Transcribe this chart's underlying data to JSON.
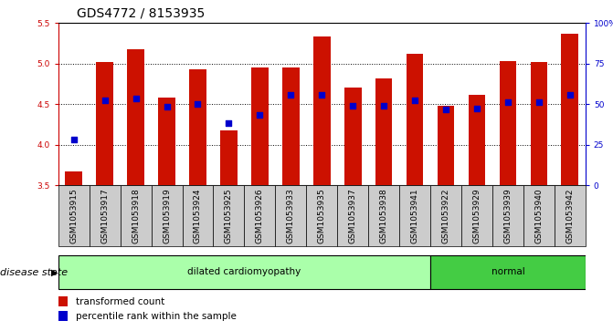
{
  "title": "GDS4772 / 8153935",
  "samples": [
    "GSM1053915",
    "GSM1053917",
    "GSM1053918",
    "GSM1053919",
    "GSM1053924",
    "GSM1053925",
    "GSM1053926",
    "GSM1053933",
    "GSM1053935",
    "GSM1053937",
    "GSM1053938",
    "GSM1053941",
    "GSM1053922",
    "GSM1053929",
    "GSM1053939",
    "GSM1053940",
    "GSM1053942"
  ],
  "bar_values": [
    3.67,
    5.02,
    5.18,
    4.58,
    4.93,
    4.18,
    4.95,
    4.95,
    5.34,
    4.71,
    4.82,
    5.12,
    4.48,
    4.62,
    5.03,
    5.02,
    5.37
  ],
  "blue_dot_values": [
    4.07,
    4.55,
    4.57,
    4.47,
    4.5,
    4.27,
    4.37,
    4.62,
    4.62,
    4.48,
    4.48,
    4.55,
    4.44,
    4.45,
    4.53,
    4.53,
    4.62
  ],
  "bar_color": "#cc1100",
  "dot_color": "#0000cc",
  "ylim_left": [
    3.5,
    5.5
  ],
  "ylim_right": [
    0,
    100
  ],
  "yticks_left": [
    3.5,
    4.0,
    4.5,
    5.0,
    5.5
  ],
  "yticks_right": [
    0,
    25,
    50,
    75,
    100
  ],
  "ytick_labels_right": [
    "0",
    "25",
    "50",
    "75",
    "100%"
  ],
  "grid_values": [
    4.0,
    4.5,
    5.0
  ],
  "disease_groups": [
    {
      "label": "dilated cardiomyopathy",
      "count": 12,
      "color": "#aaffaa"
    },
    {
      "label": "normal",
      "count": 5,
      "color": "#44cc44"
    }
  ],
  "legend_items": [
    {
      "label": "transformed count",
      "color": "#cc1100"
    },
    {
      "label": "percentile rank within the sample",
      "color": "#0000cc"
    }
  ],
  "bar_width": 0.55,
  "title_fontsize": 10,
  "tick_fontsize": 6.5,
  "label_fontsize": 7.5,
  "axis_color_left": "#cc0000",
  "axis_color_right": "#0000cc",
  "gray_box_color": "#cccccc",
  "disease_label_fontsize": 7.5
}
